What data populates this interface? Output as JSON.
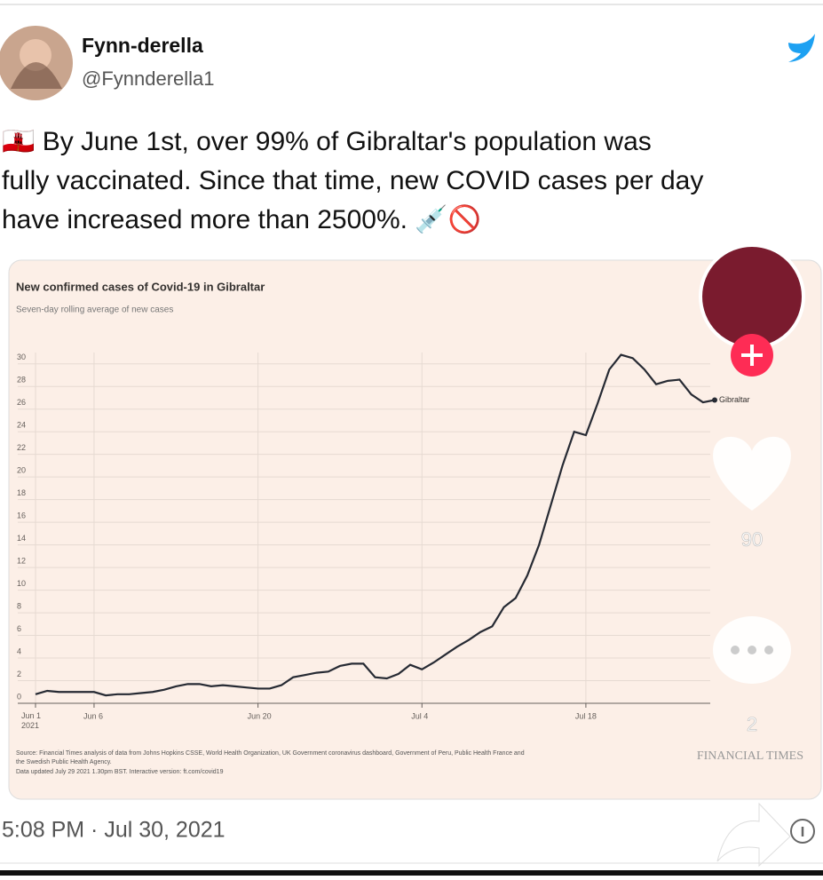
{
  "tweet": {
    "name": "Fynn-derella",
    "handle": "@Fynnderella1",
    "text_lines": [
      "🇬🇮 By June 1st, over 99% of Gibraltar's population was",
      "fully vaccinated. Since that time, new COVID cases per day",
      "have increased more than 2500%. 💉🚫"
    ],
    "timestamp": "5:08 PM · Jul 30, 2021",
    "likes": "90",
    "comments": "2"
  },
  "chart_data": {
    "type": "line",
    "title": "New confirmed cases of Covid-19 in Gibraltar",
    "subtitle": "Seven-day rolling average of new cases",
    "x": [
      "2021-06-01",
      "2021-06-02",
      "2021-06-03",
      "2021-06-04",
      "2021-06-05",
      "2021-06-06",
      "2021-06-07",
      "2021-06-08",
      "2021-06-09",
      "2021-06-10",
      "2021-06-11",
      "2021-06-12",
      "2021-06-13",
      "2021-06-14",
      "2021-06-15",
      "2021-06-16",
      "2021-06-17",
      "2021-06-18",
      "2021-06-19",
      "2021-06-20",
      "2021-06-21",
      "2021-06-22",
      "2021-06-23",
      "2021-06-24",
      "2021-06-25",
      "2021-06-26",
      "2021-06-27",
      "2021-06-28",
      "2021-06-29",
      "2021-06-30",
      "2021-07-01",
      "2021-07-02",
      "2021-07-03",
      "2021-07-04",
      "2021-07-05",
      "2021-07-06",
      "2021-07-07",
      "2021-07-08",
      "2021-07-09",
      "2021-07-10",
      "2021-07-11",
      "2021-07-12",
      "2021-07-13",
      "2021-07-14",
      "2021-07-15",
      "2021-07-16",
      "2021-07-17",
      "2021-07-18",
      "2021-07-19",
      "2021-07-20",
      "2021-07-21",
      "2021-07-22",
      "2021-07-23",
      "2021-07-24",
      "2021-07-25",
      "2021-07-26",
      "2021-07-27",
      "2021-07-28",
      "2021-07-29"
    ],
    "series": [
      {
        "name": "Gibraltar",
        "color": "#262a33",
        "values": [
          0.8,
          1.1,
          1.0,
          1.0,
          1.0,
          1.0,
          0.7,
          0.8,
          0.8,
          0.9,
          1.0,
          1.2,
          1.5,
          1.7,
          1.7,
          1.5,
          1.6,
          1.5,
          1.4,
          1.3,
          1.3,
          1.6,
          2.3,
          2.5,
          2.7,
          2.8,
          3.3,
          3.5,
          3.5,
          2.3,
          2.2,
          2.6,
          3.4,
          3.0,
          3.6,
          4.3,
          5.0,
          5.6,
          6.3,
          6.8,
          8.5,
          9.3,
          11.3,
          14,
          17.5,
          21,
          24,
          23.7,
          26.5,
          29.5,
          30.8,
          30.5,
          29.5,
          28.2,
          28.5,
          28.6,
          27.3,
          26.6,
          26.8
        ]
      }
    ],
    "xlim": [
      "2021-06-01",
      "2021-07-29"
    ],
    "xticks": [
      {
        "value": "2021-06-01",
        "label": "Jun 1\n2021"
      },
      {
        "value": "2021-06-06",
        "label": "Jun 6"
      },
      {
        "value": "2021-06-20",
        "label": "Jun 20"
      },
      {
        "value": "2021-07-04",
        "label": "Jul 4"
      },
      {
        "value": "2021-07-18",
        "label": "Jul 18"
      }
    ],
    "ylim": [
      0,
      31
    ],
    "yticks": [
      0,
      2,
      4,
      6,
      8,
      10,
      12,
      14,
      16,
      18,
      20,
      22,
      24,
      26,
      28,
      30
    ],
    "grid": true,
    "source_lines": [
      "Source: Financial Times analysis of data from Johns Hopkins CSSE, World Health Organization, UK Government coronavirus dashboard, Government of Peru, Public Health France and",
      "the Swedish Public Health Agency.",
      "Data updated July 29 2021 1.30pm BST. Interactive version: ft.com/covid19"
    ],
    "brand": "FINANCIAL TIMES"
  }
}
